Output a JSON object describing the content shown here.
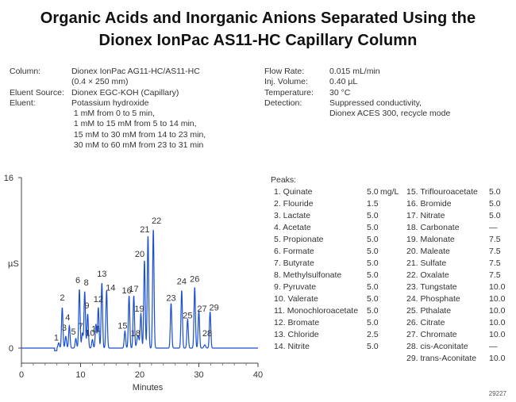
{
  "title_line1": "Organic Acids and Inorganic Anions Separated Using the",
  "title_line2": "Dionex IonPac AS11-HC Capillary Column",
  "conditions_left": [
    {
      "label": "Column:",
      "lines": [
        "Dionex IonPac AG11-HC/AS11-HC",
        "(0.4 × 250 mm)"
      ]
    },
    {
      "label": "Eluent Source:",
      "lines": [
        "Dionex EGC-KOH (Capillary)"
      ]
    },
    {
      "label": "Eluent:",
      "lines": [
        "Potassium hydroxide",
        "1 mM from 0 to 5 min,",
        "1 mM to 15 mM from 5 to 14 min,",
        "15 mM to 30 mM from 14 to 23 min,",
        "30 mM to 60 mM from 23 to 31 min"
      ]
    }
  ],
  "conditions_right": [
    {
      "label": "Flow Rate:",
      "lines": [
        "0.015 mL/min"
      ]
    },
    {
      "label": "Inj. Volume:",
      "lines": [
        "0.40 µL"
      ]
    },
    {
      "label": "Temperature:",
      "lines": [
        "30 °C"
      ]
    },
    {
      "label": "Detection:",
      "lines": [
        "Suppressed conductivity,",
        "Dionex ACES 300, recycle mode"
      ]
    }
  ],
  "peaks_title": "Peaks:",
  "peaks_col1": [
    {
      "name": "1. Quinate",
      "conc": "5.0",
      "unit": "mg/L"
    },
    {
      "name": "2. Flouride",
      "conc": "1.5"
    },
    {
      "name": "3. Lactate",
      "conc": "5.0"
    },
    {
      "name": "4. Acetate",
      "conc": "5.0"
    },
    {
      "name": "5. Propionate",
      "conc": "5.0"
    },
    {
      "name": "6. Formate",
      "conc": "5.0"
    },
    {
      "name": "7. Butyrate",
      "conc": "5.0"
    },
    {
      "name": "8. Methylsulfonate",
      "conc": "5.0"
    },
    {
      "name": "9. Pyruvate",
      "conc": "5.0"
    },
    {
      "name": "10. Valerate",
      "conc": "5.0"
    },
    {
      "name": "11. Monochloroacetate",
      "conc": "5.0"
    },
    {
      "name": "12. Bromate",
      "conc": "5.0"
    },
    {
      "name": "13. Chloride",
      "conc": "2.5"
    },
    {
      "name": "14. Nitrite",
      "conc": "5.0"
    }
  ],
  "peaks_col2": [
    {
      "name": "15. Triflouroacetate",
      "conc": "5.0"
    },
    {
      "name": "16. Bromide",
      "conc": "5.0"
    },
    {
      "name": "17. Nitrate",
      "conc": "5.0"
    },
    {
      "name": "18. Carbonate",
      "conc": "—"
    },
    {
      "name": "19. Malonate",
      "conc": "7.5"
    },
    {
      "name": "20. Maleate",
      "conc": "7.5"
    },
    {
      "name": "21. Sulfate",
      "conc": "7.5"
    },
    {
      "name": "22. Oxalate",
      "conc": "7.5"
    },
    {
      "name": "23. Tungstate",
      "conc": "10.0"
    },
    {
      "name": "24. Phosphate",
      "conc": "10.0"
    },
    {
      "name": "25. Pthalate",
      "conc": "10.0"
    },
    {
      "name": "26. Citrate",
      "conc": "10.0"
    },
    {
      "name": "27. Chromate",
      "conc": "10.0"
    },
    {
      "name": "28. cis-Aconitate",
      "conc": "—"
    },
    {
      "name": "29. trans-Aconitate",
      "conc": "10.0"
    }
  ],
  "figure_id": "29227",
  "chart_data": {
    "type": "line",
    "xlabel": "Minutes",
    "ylabel": "µS",
    "xlim": [
      0,
      40
    ],
    "ylim": [
      0,
      16
    ],
    "xticks": [
      0,
      10,
      20,
      30,
      40
    ],
    "yticks": [
      0,
      16
    ],
    "line_color": "#1a4fd0",
    "baseline": 0.0,
    "peaks": [
      {
        "label": "1",
        "t": 6.3,
        "h": 0.5,
        "w": 0.12
      },
      {
        "label": "2",
        "t": 6.9,
        "h": 3.8,
        "w": 0.12
      },
      {
        "label": "3",
        "t": 7.5,
        "h": 1.1,
        "w": 0.12
      },
      {
        "label": "4",
        "t": 8.1,
        "h": 2.1,
        "w": 0.12
      },
      {
        "label": "5",
        "t": 9.2,
        "h": 0.9,
        "w": 0.12
      },
      {
        "label": "6",
        "t": 9.8,
        "h": 5.5,
        "w": 0.12
      },
      {
        "label": "7",
        "t": 10.3,
        "h": 1.4,
        "w": 0.12
      },
      {
        "label": "8",
        "t": 10.7,
        "h": 5.3,
        "w": 0.12
      },
      {
        "label": "9",
        "t": 11.2,
        "h": 3.2,
        "w": 0.12
      },
      {
        "label": "10",
        "t": 12.0,
        "h": 0.8,
        "w": 0.12
      },
      {
        "label": "11",
        "t": 12.6,
        "h": 2.2,
        "w": 0.12
      },
      {
        "label": "12",
        "t": 13.0,
        "h": 3.8,
        "w": 0.12
      },
      {
        "label": "13",
        "t": 13.6,
        "h": 6.1,
        "w": 0.12
      },
      {
        "label": "14",
        "t": 14.4,
        "h": 5.4,
        "w": 0.12
      },
      {
        "label": "15",
        "t": 17.5,
        "h": 1.6,
        "w": 0.12
      },
      {
        "label": "16",
        "t": 18.2,
        "h": 4.9,
        "w": 0.12
      },
      {
        "label": "17",
        "t": 19.0,
        "h": 4.9,
        "w": 0.12
      },
      {
        "label": "18",
        "t": 19.7,
        "h": 1.2,
        "w": 0.18
      },
      {
        "label": "19",
        "t": 20.2,
        "h": 3.2,
        "w": 0.12
      },
      {
        "label": "20",
        "t": 20.8,
        "h": 8.2,
        "w": 0.12
      },
      {
        "label": "21",
        "t": 21.4,
        "h": 10.5,
        "w": 0.12
      },
      {
        "label": "22",
        "t": 22.3,
        "h": 11.1,
        "w": 0.12
      },
      {
        "label": "23",
        "t": 25.3,
        "h": 4.2,
        "w": 0.12
      },
      {
        "label": "24",
        "t": 27.1,
        "h": 5.4,
        "w": 0.12
      },
      {
        "label": "25",
        "t": 28.1,
        "h": 2.7,
        "w": 0.12
      },
      {
        "label": "26",
        "t": 29.3,
        "h": 5.7,
        "w": 0.12
      },
      {
        "label": "27",
        "t": 30.0,
        "h": 3.5,
        "w": 0.12
      },
      {
        "label": "28",
        "t": 31.0,
        "h": 0.3,
        "w": 0.15
      },
      {
        "label": "29",
        "t": 31.9,
        "h": 3.4,
        "w": 0.12
      }
    ]
  }
}
